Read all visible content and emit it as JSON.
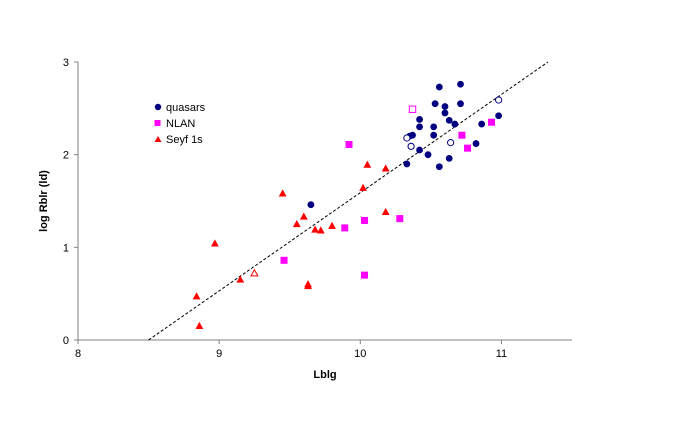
{
  "chart_data": {
    "type": "scatter",
    "title": "",
    "xlabel": "Lblg",
    "ylabel": "log Rblr (ld)",
    "xlim": [
      8,
      11.5
    ],
    "ylim": [
      0,
      3
    ],
    "x_ticks": [
      "8",
      "9",
      "10",
      "11"
    ],
    "y_ticks": [
      "0",
      "1",
      "2",
      "3"
    ],
    "grid": false,
    "legend_position": "upper-left",
    "colors": {
      "quasars": "#000080",
      "NLAN": "#ff00ff",
      "Seyf 1s": "#ff0000",
      "fit": "#000000"
    },
    "series": [
      {
        "name": "quasars",
        "marker": "circle",
        "filled": [
          [
            10.33,
            1.9
          ],
          [
            10.35,
            2.2
          ],
          [
            10.37,
            2.21
          ],
          [
            10.42,
            2.05
          ],
          [
            10.42,
            2.3
          ],
          [
            10.42,
            2.38
          ],
          [
            10.48,
            2.0
          ],
          [
            10.52,
            2.21
          ],
          [
            10.52,
            2.3
          ],
          [
            10.53,
            2.55
          ],
          [
            10.56,
            1.87
          ],
          [
            10.56,
            2.73
          ],
          [
            10.6,
            2.45
          ],
          [
            10.6,
            2.52
          ],
          [
            10.63,
            2.37
          ],
          [
            10.63,
            1.96
          ],
          [
            10.67,
            2.33
          ],
          [
            10.71,
            2.55
          ],
          [
            10.71,
            2.76
          ],
          [
            10.82,
            2.12
          ],
          [
            10.86,
            2.33
          ],
          [
            10.98,
            2.42
          ],
          [
            9.65,
            1.46
          ]
        ],
        "open": [
          [
            10.33,
            2.18
          ],
          [
            10.36,
            2.09
          ],
          [
            10.64,
            2.13
          ],
          [
            10.98,
            2.59
          ]
        ]
      },
      {
        "name": "NLAN",
        "marker": "square",
        "filled": [
          [
            9.92,
            2.11
          ],
          [
            9.46,
            0.86
          ],
          [
            9.89,
            1.21
          ],
          [
            10.03,
            1.29
          ],
          [
            10.28,
            1.31
          ],
          [
            10.03,
            0.7
          ],
          [
            10.72,
            2.21
          ],
          [
            10.76,
            2.07
          ],
          [
            10.93,
            2.35
          ]
        ],
        "open": [
          [
            10.37,
            2.49
          ]
        ]
      },
      {
        "name": "Seyf 1s",
        "marker": "triangle",
        "filled": [
          [
            8.84,
            0.47
          ],
          [
            8.86,
            0.15
          ],
          [
            8.97,
            1.04
          ],
          [
            9.15,
            0.65
          ],
          [
            9.45,
            1.58
          ],
          [
            9.55,
            1.25
          ],
          [
            9.6,
            1.33
          ],
          [
            9.63,
            0.6
          ],
          [
            9.63,
            0.58
          ],
          [
            9.68,
            1.19
          ],
          [
            9.72,
            1.18
          ],
          [
            9.8,
            1.23
          ],
          [
            10.02,
            1.64
          ],
          [
            10.05,
            1.89
          ],
          [
            10.18,
            1.85
          ],
          [
            10.18,
            1.38
          ]
        ],
        "open": [
          [
            9.25,
            0.72
          ]
        ]
      }
    ],
    "fit_line": {
      "x": [
        8.5,
        11.33
      ],
      "y": [
        0.0,
        3.0
      ],
      "style": "dashed"
    }
  }
}
